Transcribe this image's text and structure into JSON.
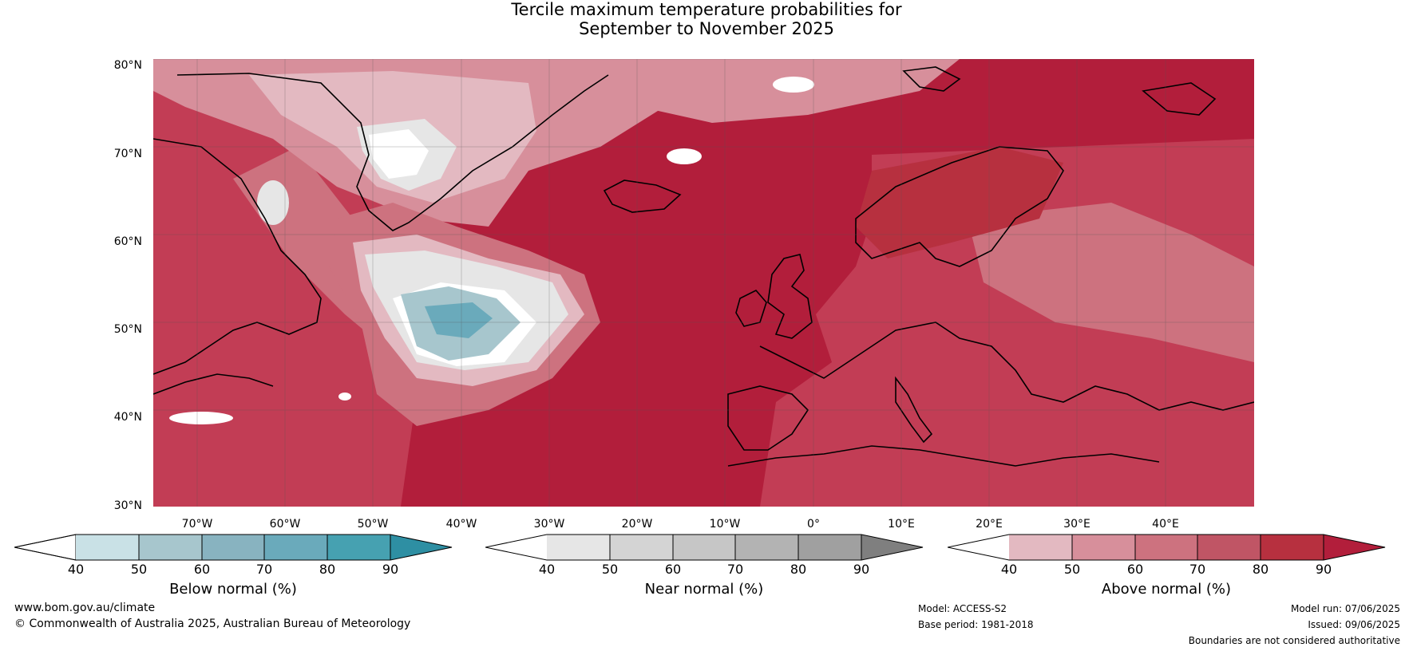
{
  "title": {
    "line1": "Tercile maximum temperature probabilities for",
    "line2": "September to November 2025"
  },
  "map": {
    "lat_labels": [
      "80°N",
      "70°N",
      "60°N",
      "50°N",
      "40°N",
      "30°N"
    ],
    "lon_labels": [
      "70°W",
      "60°W",
      "50°W",
      "40°W",
      "30°W",
      "20°W",
      "10°W",
      "0°",
      "10°E",
      "20°E",
      "30°E",
      "40°E"
    ],
    "colors": {
      "ocean_hot": "#b21e3b",
      "land_warm": "#c23d55"
    }
  },
  "colorbars": [
    {
      "name": "below",
      "label": "Below normal (%)",
      "ticks": [
        "40",
        "50",
        "60",
        "70",
        "80",
        "90"
      ],
      "colors": [
        "#ffffff",
        "#c9e1e6",
        "#a7c6cd",
        "#88b3c0",
        "#6aaabb",
        "#46a1b1",
        "#2e8fa3"
      ]
    },
    {
      "name": "near",
      "label": "Near normal (%)",
      "ticks": [
        "40",
        "50",
        "60",
        "70",
        "80",
        "90"
      ],
      "colors": [
        "#ffffff",
        "#e6e6e6",
        "#d4d4d4",
        "#c6c6c6",
        "#b3b3b3",
        "#a0a0a0",
        "#7f7f7f"
      ]
    },
    {
      "name": "above",
      "label": "Above normal (%)",
      "ticks": [
        "40",
        "50",
        "60",
        "70",
        "80",
        "90"
      ],
      "colors": [
        "#ffffff",
        "#e3b9c1",
        "#d78f9b",
        "#cd727f",
        "#c05565",
        "#b7303f",
        "#b21e3b"
      ]
    }
  ],
  "footer": {
    "website": "www.bom.gov.au/climate",
    "copyright": "© Commonwealth of Australia 2025, Australian Bureau of Meteorology",
    "model": "Model: ACCESS-S2",
    "base_period": "Base period: 1981-2018",
    "model_run": "Model run: 07/06/2025",
    "issued": "Issued: 09/06/2025",
    "disclaimer": "Boundaries are not considered authoritative"
  }
}
